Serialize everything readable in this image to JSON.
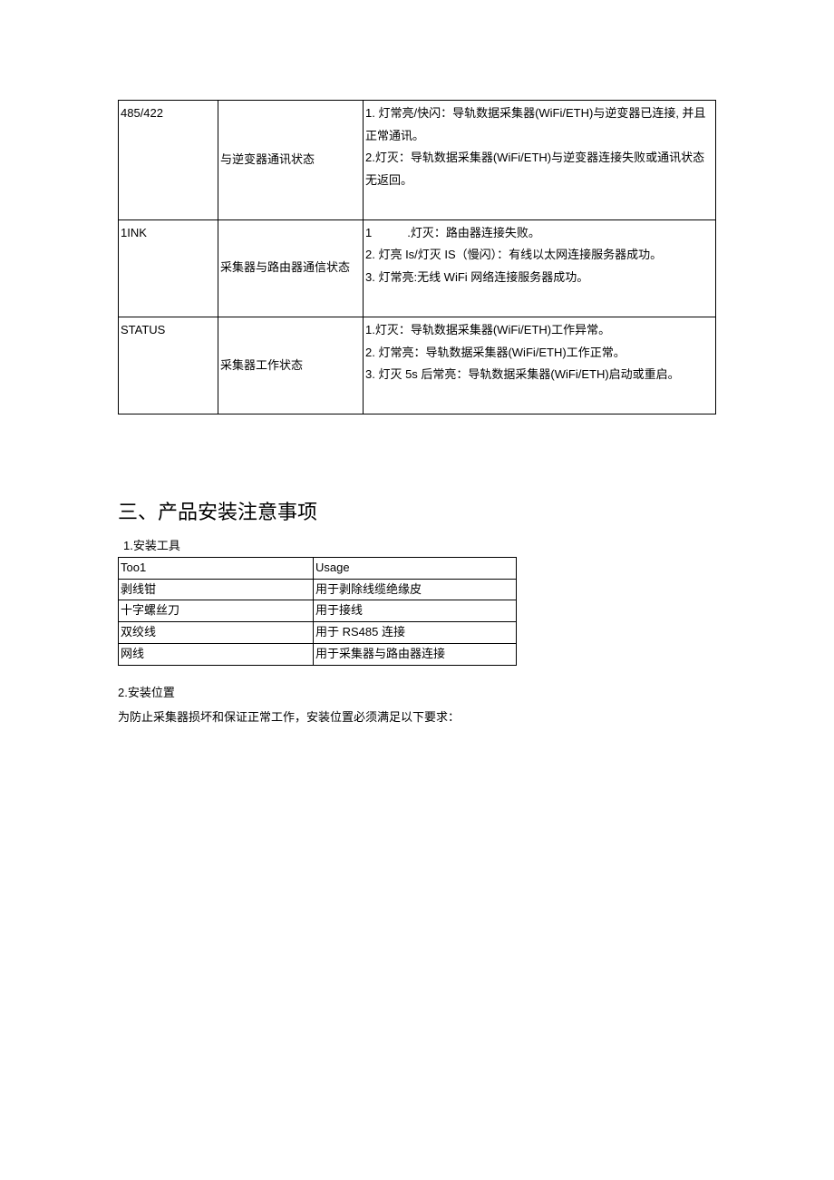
{
  "led_table": {
    "rows": [
      {
        "c1": "485/422",
        "c2": "与逆变器通讯状态",
        "c3": "1. 灯常亮/快闪：导轨数据采集器(WiFi/ETH)与逆变器已连接, 并且正常通讯。\n2.灯灭：导轨数据采集器(WiFi/ETH)与逆变器连接失败或通讯状态无返回。"
      },
      {
        "c1": "1INK",
        "c2": "采集器与路由器通信状态",
        "c3": "1　　　.灯灭：路由器连接失败。\n2. 灯亮 Is/灯灭 IS（慢闪）：有线以太网连接服务器成功。\n3. 灯常亮:无线 WiFi 网络连接服务器成功。"
      },
      {
        "c1": "STATUS",
        "c2": "采集器工作状态",
        "c3": "1.灯灭：导轨数据采集器(WiFi/ETH)工作异常。\n2. 灯常亮：导轨数据采集器(WiFi/ETH)工作正常。\n3. 灯灭 5s 后常亮：导轨数据采集器(WiFi/ETH)启动或重启。"
      }
    ]
  },
  "section3": {
    "title": "三、产品安装注意事项",
    "sub1": "1.安装工具",
    "tool_table": {
      "header": {
        "c1": "Too1",
        "c2": "Usage"
      },
      "rows": [
        {
          "c1": "剥线钳",
          "c2": "用于剥除线缆绝缘皮"
        },
        {
          "c1": "十字螺丝刀",
          "c2": "用于接线"
        },
        {
          "c1": "双绞线",
          "c2": "用于 RS485 连接"
        },
        {
          "c1": "网线",
          "c2": "用于采集器与路由器连接"
        }
      ]
    },
    "sub2": "2.安装位置",
    "para2": "为防止采集器损坏和保证正常工作，安装位置必须满足以下要求："
  }
}
